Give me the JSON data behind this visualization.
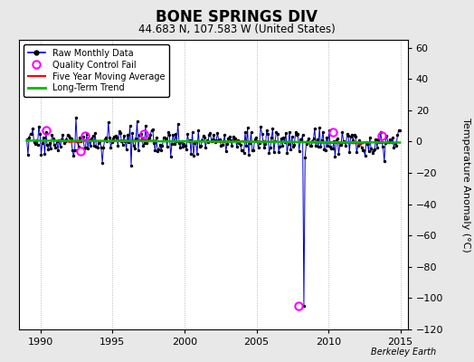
{
  "title": "BONE SPRINGS DIV",
  "subtitle": "44.683 N, 107.583 W (United States)",
  "ylabel": "Temperature Anomaly (°C)",
  "xlabel_credit": "Berkeley Earth",
  "xlim": [
    1988.5,
    2015.5
  ],
  "ylim": [
    -120,
    65
  ],
  "yticks": [
    -120,
    -100,
    -80,
    -60,
    -40,
    -20,
    0,
    20,
    40,
    60
  ],
  "xticks": [
    1990,
    1995,
    2000,
    2005,
    2010,
    2015
  ],
  "bg_color": "#e8e8e8",
  "plot_bg_color": "#ffffff",
  "raw_line_color": "#0000cc",
  "raw_marker_color": "#000000",
  "raw_marker_size": 2.5,
  "qc_fail_color": "#ff00ff",
  "moving_avg_color": "#ff0000",
  "trend_color": "#00bb00",
  "trend_linewidth": 1.8,
  "moving_avg_linewidth": 1.2,
  "raw_linewidth": 0.7,
  "spike_year": 2008.25,
  "spike_value": -105.0,
  "noise_std": 4.5,
  "qc_fail_years": [
    1990.4,
    1992.8,
    1993.1,
    1997.2,
    2007.9,
    2010.3,
    2013.7
  ],
  "qc_fail_values": [
    7.0,
    -6.0,
    4.0,
    5.0,
    -105.0,
    6.0,
    4.0
  ]
}
